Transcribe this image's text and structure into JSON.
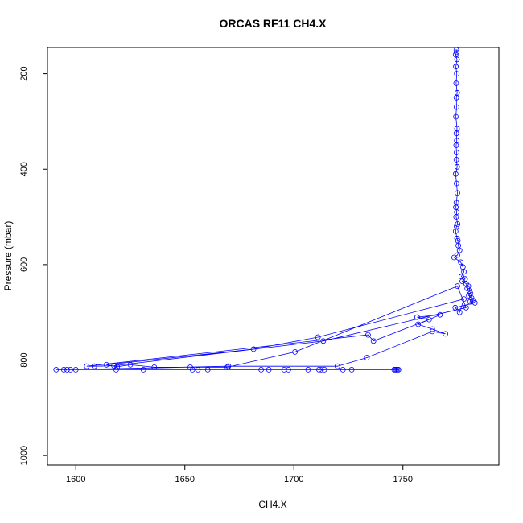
{
  "chart_data": {
    "type": "line",
    "title": "ORCAS RF11 CH4.X",
    "xlabel": "CH4.X",
    "ylabel": "Pressure (mbar)",
    "xlim": [
      1587,
      1794
    ],
    "ylim": [
      1020,
      145
    ],
    "y_reversed": true,
    "xticks": [
      1600,
      1650,
      1700,
      1750
    ],
    "yticks": [
      200,
      400,
      600,
      800,
      1000
    ],
    "grid": false,
    "markers": "open-circle",
    "color": "#0000ff",
    "series": [
      {
        "x": [
          1774.5,
          1774.6,
          1774.2,
          1774.8,
          1774.3,
          1774.7,
          1774.4,
          1774.9,
          1774.5,
          1774.6,
          1774.3,
          1774.8,
          1774.5,
          1774.7,
          1774.4,
          1774.6,
          1774.5,
          1774.9,
          1774.2,
          1774.6,
          1775.0,
          1774.5,
          1774.3,
          1774.7,
          1774.4,
          1775.1,
          1774.6,
          1774.2,
          1774.8,
          1775.2,
          1775.4,
          1776.0,
          1775.0,
          1773.5,
          1776.5,
          1777.5,
          1778.0,
          1776.8,
          1778.5,
          1777.2,
          1779.0,
          1780.0,
          1779.5,
          1780.5,
          1781.0,
          1780.2,
          1781.5,
          1782.0,
          1780.8,
          1783.0,
          1774.0,
          1776.0,
          1778.0,
          1711.0,
          1681.5,
          1614.0,
          1619.0,
          1625.0,
          1636.0,
          1652.5,
          1669.5,
          1700.5,
          1775.0,
          1779.0,
          1713.5,
          1617.5,
          1608.5,
          1605.0,
          1734.0,
          1736.5,
          1762.0,
          1756.5,
          1767.0,
          1757.0,
          1763.5,
          1769.5,
          1763.5,
          1733.5,
          1720.0,
          1670.0,
          1594.5,
          1591.0,
          1597.5,
          1600.0,
          1618.5,
          1631.0,
          1653.5,
          1656.0,
          1660.5,
          1685.0,
          1688.5,
          1695.5,
          1697.5,
          1706.5,
          1711.5,
          1712.5,
          1714.0,
          1722.5,
          1726.5,
          1746.5,
          1747.0,
          1748.0,
          1747.5,
          1746.0,
          1596.0
        ],
        "y": [
          150,
          155,
          160,
          170,
          185,
          200,
          220,
          240,
          250,
          270,
          290,
          315,
          325,
          340,
          350,
          365,
          380,
          395,
          410,
          430,
          450,
          470,
          480,
          490,
          500,
          515,
          520,
          530,
          545,
          550,
          560,
          570,
          580,
          585,
          595,
          605,
          615,
          625,
          630,
          635,
          640,
          645,
          650,
          655,
          660,
          665,
          670,
          675,
          678,
          680,
          690,
          700,
          672,
          752,
          777,
          810,
          814,
          810,
          815,
          815,
          815,
          783,
          645,
          690,
          760,
          812,
          813,
          813,
          747,
          760,
          715,
          710,
          705,
          725,
          735,
          745,
          740,
          795,
          813,
          813,
          820,
          820,
          820,
          820,
          820,
          820,
          820,
          820,
          820,
          820,
          820,
          820,
          820,
          820,
          820,
          820,
          820,
          820,
          820,
          820,
          820,
          820,
          820,
          820,
          820
        ]
      }
    ]
  }
}
